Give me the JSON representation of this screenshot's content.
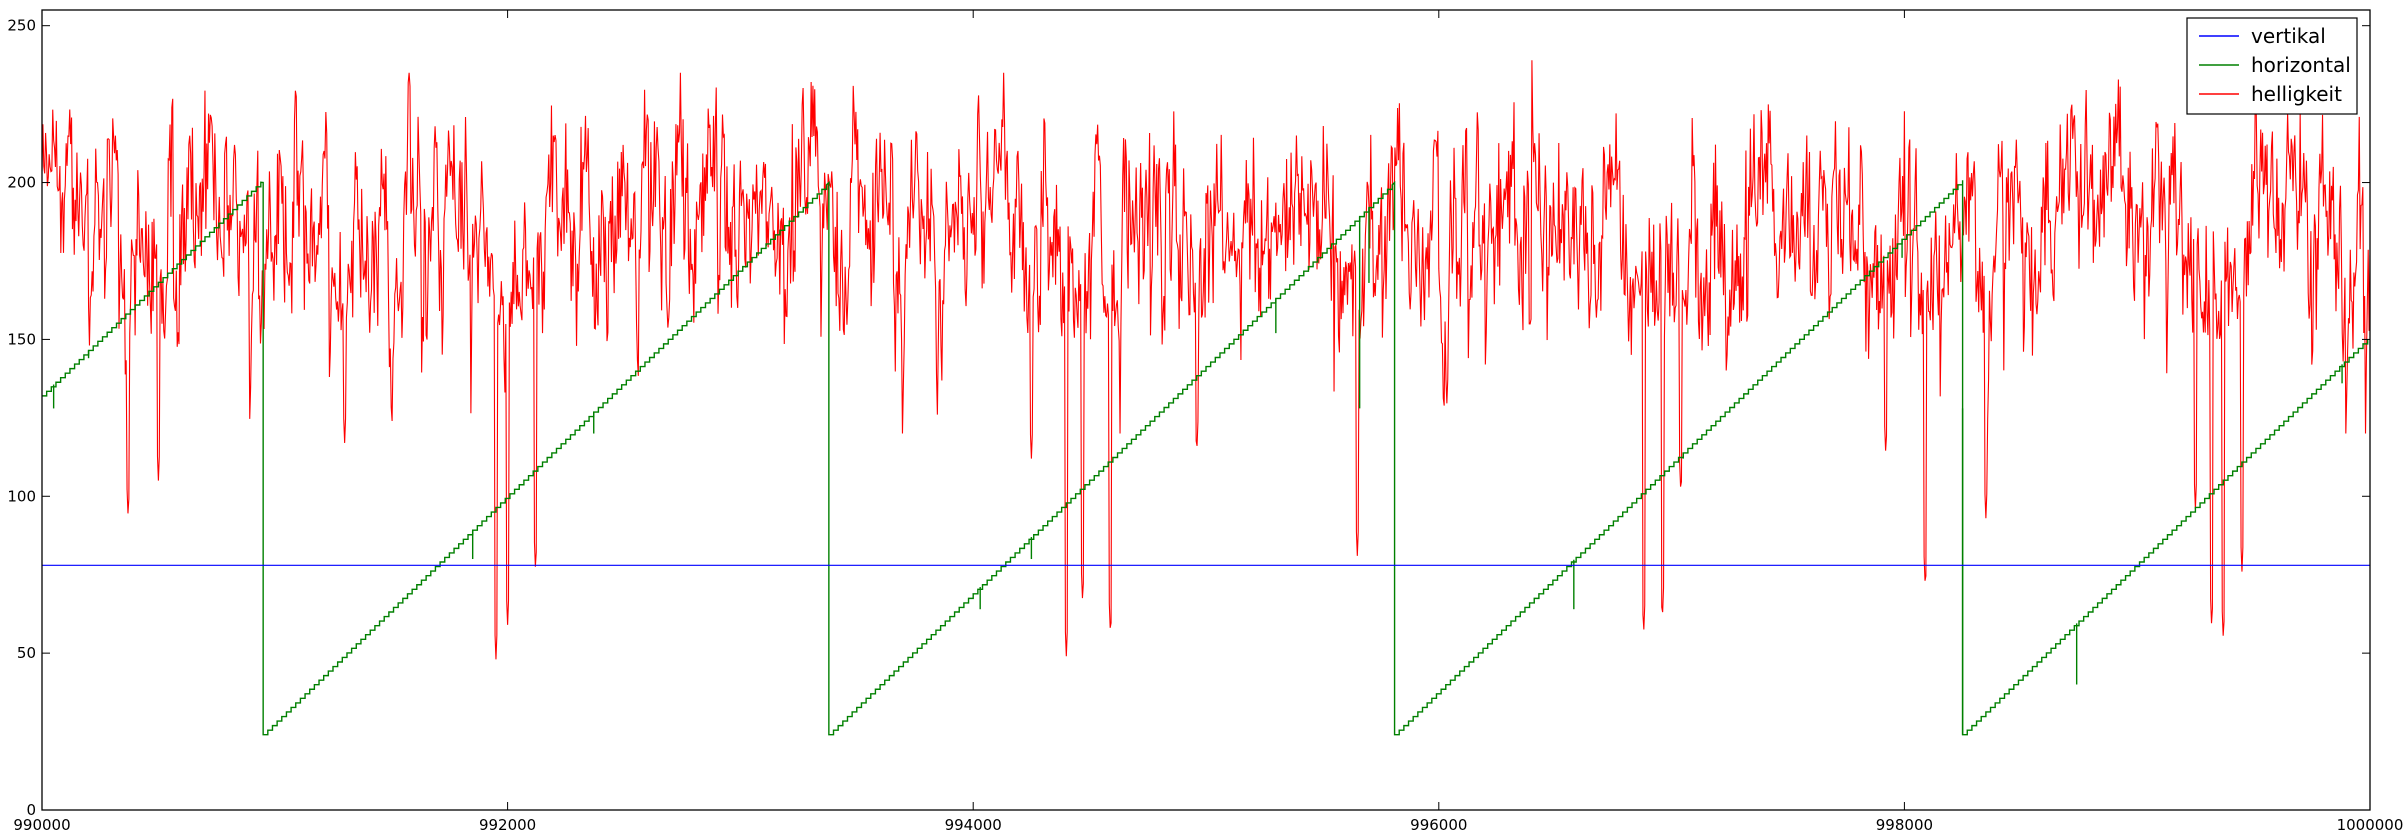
{
  "chart_data": {
    "type": "line",
    "title": "",
    "xlabel": "",
    "ylabel": "",
    "xlim": [
      990000,
      1000000
    ],
    "ylim": [
      0,
      255
    ],
    "grid": false,
    "legend_placement": "top-right",
    "x_ticks": [
      990000,
      992000,
      994000,
      996000,
      998000,
      1000000
    ],
    "y_ticks": [
      0,
      50,
      100,
      150,
      200,
      250
    ],
    "x_tick_labels": [
      "990000",
      "992000",
      "994000",
      "996000",
      "998000",
      "1000000"
    ],
    "y_tick_labels": [
      "0",
      "50",
      "100",
      "150",
      "200",
      "250"
    ],
    "series": [
      {
        "name": "vertikal",
        "color": "#0000ff",
        "kind": "constant",
        "value": 78
      },
      {
        "name": "horizontal",
        "color": "#008000",
        "kind": "sawtooth",
        "start_value": 132,
        "min": 24,
        "max": 200,
        "resets_at_x": [
          990950,
          993380,
          995810,
          998250
        ],
        "end_value": 151,
        "spikes": [
          {
            "x": 990050,
            "value": 128
          },
          {
            "x": 990200,
            "value": 144
          },
          {
            "x": 991850,
            "value": 80
          },
          {
            "x": 992370,
            "value": 120
          },
          {
            "x": 993500,
            "value": 32
          },
          {
            "x": 994030,
            "value": 64
          },
          {
            "x": 994250,
            "value": 80
          },
          {
            "x": 995300,
            "value": 152
          },
          {
            "x": 995660,
            "value": 128
          },
          {
            "x": 995700,
            "value": 168
          },
          {
            "x": 996580,
            "value": 64
          },
          {
            "x": 997050,
            "value": 112
          },
          {
            "x": 997990,
            "value": 176
          },
          {
            "x": 998250,
            "value": 128
          },
          {
            "x": 998740,
            "value": 40
          },
          {
            "x": 999880,
            "value": 136
          }
        ]
      },
      {
        "name": "helligkeit",
        "color": "#ff0000",
        "kind": "noisy",
        "typical_range": [
          160,
          220
        ],
        "max_observed": 239,
        "dips": [
          {
            "x": 990370,
            "value": 93
          },
          {
            "x": 990500,
            "value": 105
          },
          {
            "x": 991300,
            "value": 117
          },
          {
            "x": 991950,
            "value": 48
          },
          {
            "x": 992000,
            "value": 59
          },
          {
            "x": 992120,
            "value": 76
          },
          {
            "x": 994250,
            "value": 112
          },
          {
            "x": 994400,
            "value": 49
          },
          {
            "x": 994470,
            "value": 66
          },
          {
            "x": 994590,
            "value": 55
          },
          {
            "x": 994960,
            "value": 113
          },
          {
            "x": 995650,
            "value": 81
          },
          {
            "x": 996880,
            "value": 56
          },
          {
            "x": 996960,
            "value": 60
          },
          {
            "x": 997040,
            "value": 100
          },
          {
            "x": 997920,
            "value": 113
          },
          {
            "x": 998090,
            "value": 70
          },
          {
            "x": 998350,
            "value": 93
          },
          {
            "x": 999250,
            "value": 96
          },
          {
            "x": 999320,
            "value": 58
          },
          {
            "x": 999370,
            "value": 54
          },
          {
            "x": 999450,
            "value": 76
          }
        ]
      }
    ]
  }
}
